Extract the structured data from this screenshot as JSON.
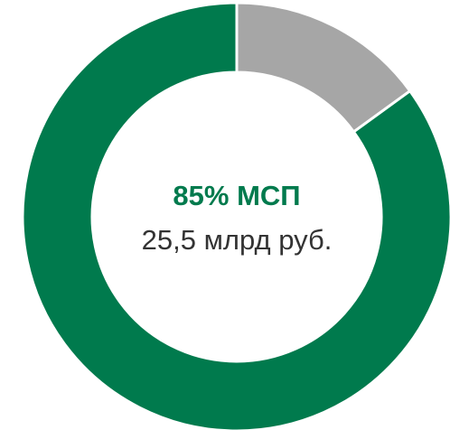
{
  "chart_data": {
    "type": "donut",
    "categories": [
      null,
      null
    ],
    "values": [
      15,
      85
    ],
    "colors": [
      "#a6a6a6",
      "#007a4d"
    ],
    "center_title": "85% МСП",
    "center_subtitle": "25,5 млрд руб."
  }
}
